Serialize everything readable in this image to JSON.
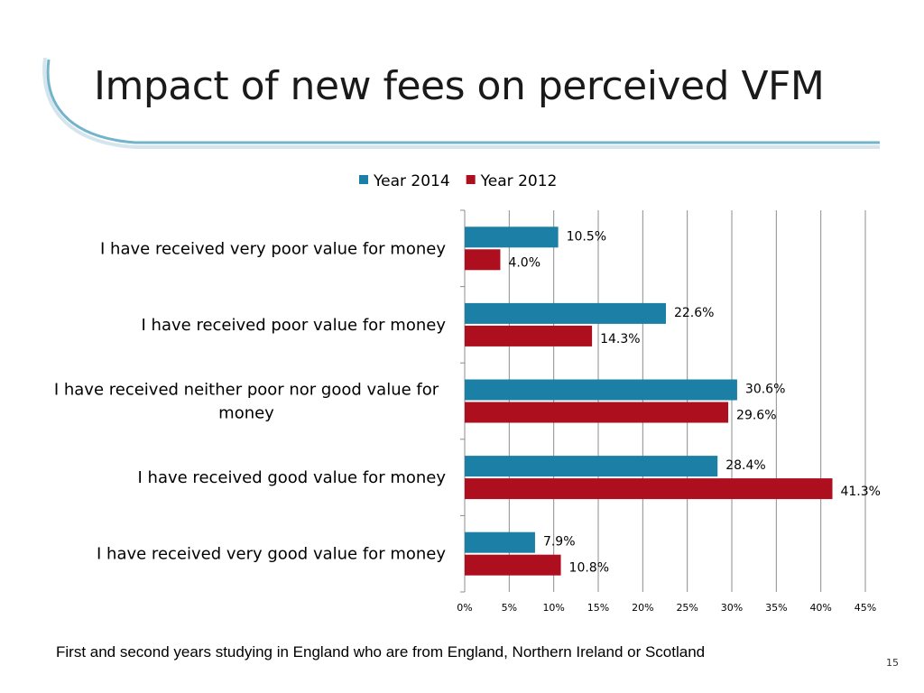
{
  "slide": {
    "title": "Impact of new fees on perceived VFM",
    "footnote": "First and second years studying in England who are from England, Northern Ireland or Scotland",
    "page_number": "15"
  },
  "colors": {
    "year_2014": "#1b7fa6",
    "year_2012": "#ad0f1e",
    "accent_line": "#5aa6c2"
  },
  "chart_data": {
    "type": "bar",
    "orientation": "horizontal",
    "categories": [
      "I have received very poor value for money",
      "I have received poor value for money",
      "I have received neither poor nor good value for money",
      "I have received good value for money",
      "I have received very good value for money"
    ],
    "category_lines": [
      [
        "I have received very poor value for money"
      ],
      [
        "I have received poor value for money"
      ],
      [
        "I have received neither poor nor good value for",
        "money"
      ],
      [
        "I have received good value for money"
      ],
      [
        "I have received very good value for money"
      ]
    ],
    "series": [
      {
        "name": "Year 2014",
        "values": [
          10.5,
          22.6,
          30.6,
          28.4,
          7.9
        ],
        "labels": [
          "10.5%",
          "22.6%",
          "30.6%",
          "28.4%",
          "7.9%"
        ]
      },
      {
        "name": "Year 2012",
        "values": [
          4.0,
          14.3,
          29.6,
          41.3,
          10.8
        ],
        "labels": [
          "4.0%",
          "14.3%",
          "29.6%",
          "41.3%",
          "10.8%"
        ]
      }
    ],
    "xlim": [
      0,
      45
    ],
    "xticks": [
      "0%",
      "5%",
      "10%",
      "15%",
      "20%",
      "25%",
      "30%",
      "35%",
      "40%",
      "45%"
    ],
    "grid": true,
    "legend": "top"
  }
}
